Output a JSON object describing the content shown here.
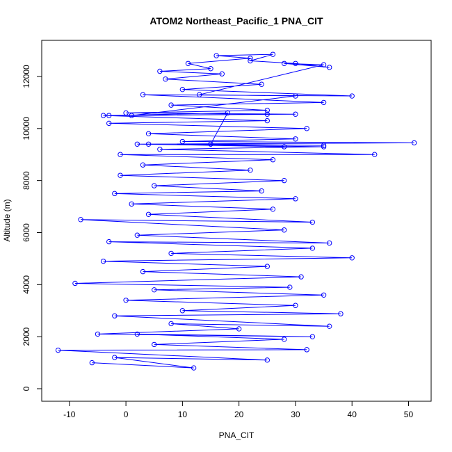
{
  "chart_data": {
    "type": "line",
    "title": "ATOM2 Northeast_Pacific_1 PNA_CIT",
    "x_label": "PNA_CIT",
    "y_label": "Altitude (m)",
    "color": "#0000ff",
    "x": [
      -6,
      12,
      -2,
      25,
      -12,
      32,
      5,
      28,
      2,
      33,
      -5,
      20,
      8,
      36,
      -2,
      38,
      10,
      30,
      0,
      35,
      5,
      29,
      -9,
      31,
      3,
      25,
      -4,
      40,
      8,
      33,
      -3,
      36,
      2,
      28,
      -8,
      33,
      4,
      26,
      1,
      30,
      -2,
      24,
      5,
      28,
      -1,
      22,
      3,
      26,
      -1,
      44,
      6,
      35,
      2,
      51,
      10,
      30,
      4,
      32,
      -3,
      25,
      -4,
      30,
      0,
      25,
      8,
      35,
      3,
      40,
      10,
      24,
      7,
      17,
      6,
      15,
      11,
      22,
      16,
      26,
      22,
      30,
      36,
      28,
      35,
      13,
      30,
      1,
      25,
      -3,
      18,
      15,
      35,
      4,
      28
    ],
    "values": [
      1000,
      800,
      1200,
      1100,
      1480,
      1500,
      1700,
      1900,
      2100,
      2000,
      2100,
      2300,
      2500,
      2400,
      2800,
      2880,
      3000,
      3200,
      3400,
      3600,
      3800,
      3900,
      4050,
      4300,
      4500,
      4700,
      4900,
      5030,
      5200,
      5400,
      5650,
      5600,
      5900,
      6100,
      6500,
      6400,
      6700,
      6900,
      7100,
      7300,
      7500,
      7600,
      7800,
      8000,
      8200,
      8400,
      8600,
      8800,
      9000,
      9000,
      9200,
      9300,
      9400,
      9450,
      9500,
      9600,
      9800,
      10000,
      10200,
      10300,
      10500,
      10550,
      10600,
      10700,
      10900,
      11000,
      11300,
      11250,
      11500,
      11700,
      11900,
      12100,
      12200,
      12300,
      12500,
      12700,
      12800,
      12850,
      12600,
      12500,
      12350,
      12500,
      12450,
      11300,
      11250,
      10500,
      10550,
      10500,
      10600,
      9400,
      9350,
      9400,
      9300
    ],
    "xlim": [
      -14.9,
      54.0
    ],
    "ylim": [
      -481,
      13389
    ],
    "xticks": [
      -10,
      0,
      10,
      20,
      30,
      40,
      50
    ],
    "yticks": [
      0,
      2000,
      4000,
      6000,
      8000,
      10000,
      12000
    ]
  }
}
